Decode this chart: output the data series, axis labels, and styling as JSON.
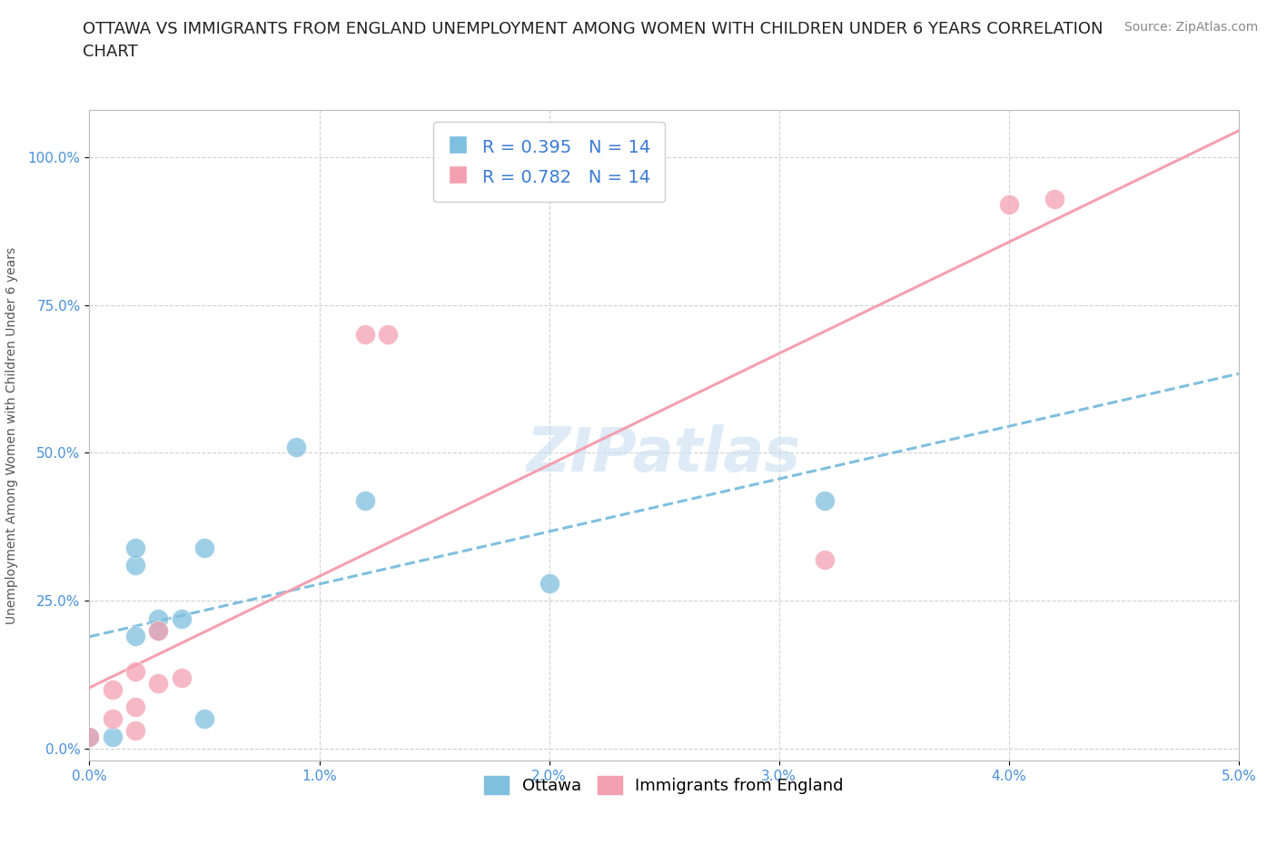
{
  "title": "OTTAWA VS IMMIGRANTS FROM ENGLAND UNEMPLOYMENT AMONG WOMEN WITH CHILDREN UNDER 6 YEARS CORRELATION\nCHART",
  "source": "Source: ZipAtlas.com",
  "ylabel": "Unemployment Among Women with Children Under 6 years",
  "xlim": [
    0.0,
    0.05
  ],
  "ylim": [
    -0.02,
    1.08
  ],
  "xticks": [
    0.0,
    0.01,
    0.02,
    0.03,
    0.04,
    0.05
  ],
  "xticklabels": [
    "0.0%",
    "1.0%",
    "2.0%",
    "3.0%",
    "4.0%",
    "5.0%"
  ],
  "yticks": [
    0.0,
    0.25,
    0.5,
    0.75,
    1.0
  ],
  "yticklabels": [
    "0.0%",
    "25.0%",
    "50.0%",
    "75.0%",
    "100.0%"
  ],
  "ottawa_color": "#7fbfdf",
  "immigrants_color": "#f4a0b0",
  "ottawa_R": 0.395,
  "ottawa_N": 14,
  "immigrants_R": 0.782,
  "immigrants_N": 14,
  "watermark": "ZIPatlas",
  "background_color": "#ffffff",
  "grid_color": "#d0d0d0",
  "ottawa_x": [
    0.0,
    0.001,
    0.002,
    0.002,
    0.002,
    0.003,
    0.003,
    0.004,
    0.005,
    0.005,
    0.009,
    0.012,
    0.02,
    0.032
  ],
  "ottawa_y": [
    0.02,
    0.02,
    0.19,
    0.31,
    0.34,
    0.2,
    0.22,
    0.22,
    0.34,
    0.05,
    0.51,
    0.42,
    0.28,
    0.42
  ],
  "immigrants_x": [
    0.0,
    0.001,
    0.001,
    0.002,
    0.002,
    0.002,
    0.003,
    0.003,
    0.004,
    0.012,
    0.013,
    0.032,
    0.04,
    0.042
  ],
  "immigrants_y": [
    0.02,
    0.05,
    0.1,
    0.03,
    0.07,
    0.13,
    0.2,
    0.11,
    0.12,
    0.7,
    0.7,
    0.32,
    0.92,
    0.93
  ],
  "legend_label_ottawa": "Ottawa",
  "legend_label_immigrants": "Immigrants from England",
  "title_fontsize": 13,
  "axis_label_fontsize": 10,
  "tick_fontsize": 11,
  "legend_fontsize": 13,
  "source_fontsize": 10,
  "watermark_fontsize": 48,
  "watermark_color": "#c8dff0",
  "watermark_alpha": 0.6
}
